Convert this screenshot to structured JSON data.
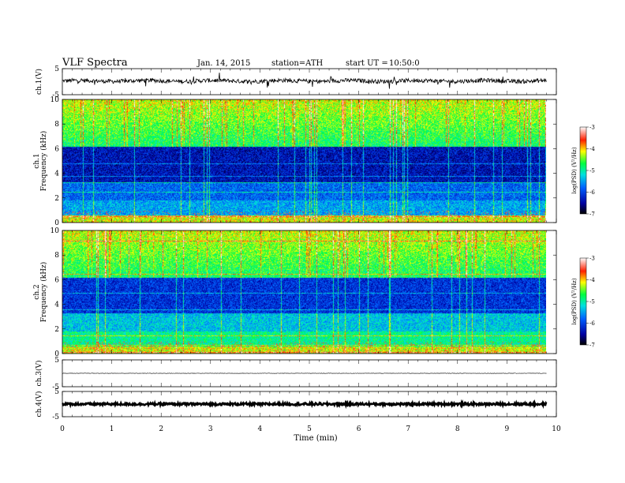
{
  "header": {
    "title": "VLF Spectra",
    "date": "Jan. 14, 2015",
    "station": "station=ATH",
    "start_label": "start UT =",
    "start_time": "10:50:0"
  },
  "colors": {
    "spectrogram_low": "#000060",
    "spectrogram_mid": "#00ff80",
    "spectrogram_high": "#ff0000",
    "trace": "#000000"
  },
  "chart_data": [
    {
      "type": "line",
      "name": "ch1-waveform",
      "ylabel": "ch.1(V)",
      "yticks": [
        "5",
        "-5"
      ],
      "ylim": [
        -5,
        5
      ],
      "x_range_min": [
        0,
        9.8
      ],
      "baseline": 0.3
    },
    {
      "type": "heatmap",
      "name": "ch1-spectrogram",
      "ylabel_channel": "ch.1",
      "ylabel": "Frequency (kHz)",
      "yticks": [
        "0",
        "2",
        "4",
        "6",
        "8",
        "10"
      ],
      "ylim": [
        0,
        10
      ],
      "x_range_min": [
        0,
        9.8
      ],
      "colorbar": {
        "label": "log(PSD) (V²/Hz)",
        "ticks": [
          "-3",
          "-4",
          "-5",
          "-6",
          "-7"
        ],
        "range": [
          -7,
          -3
        ]
      }
    },
    {
      "type": "heatmap",
      "name": "ch2-spectrogram",
      "ylabel_channel": "ch.2",
      "ylabel": "Frequency (kHz)",
      "yticks": [
        "0",
        "2",
        "4",
        "6",
        "8",
        "10"
      ],
      "ylim": [
        0,
        10
      ],
      "x_range_min": [
        0,
        9.8
      ],
      "colorbar": {
        "label": "log(PSD) (V²/Hz)",
        "ticks": [
          "-3",
          "-4",
          "-5",
          "-6",
          "-7"
        ],
        "range": [
          -7,
          -3
        ]
      }
    },
    {
      "type": "line",
      "name": "ch3-waveform",
      "ylabel": "ch.3(V)",
      "yticks": [
        "5",
        "-5"
      ],
      "ylim": [
        -5,
        5
      ],
      "x_range_min": [
        0,
        9.8
      ],
      "baseline": 0
    },
    {
      "type": "line",
      "name": "ch4-waveform",
      "ylabel": "ch.4(V)",
      "yticks": [
        "5",
        "-5"
      ],
      "ylim": [
        -5,
        5
      ],
      "x_range_min": [
        0,
        9.8
      ],
      "baseline": 0
    }
  ],
  "xaxis": {
    "label": "Time (min)",
    "ticks": [
      "0",
      "1",
      "2",
      "3",
      "4",
      "5",
      "6",
      "7",
      "8",
      "9",
      "10"
    ],
    "xlim": [
      0,
      10
    ]
  }
}
